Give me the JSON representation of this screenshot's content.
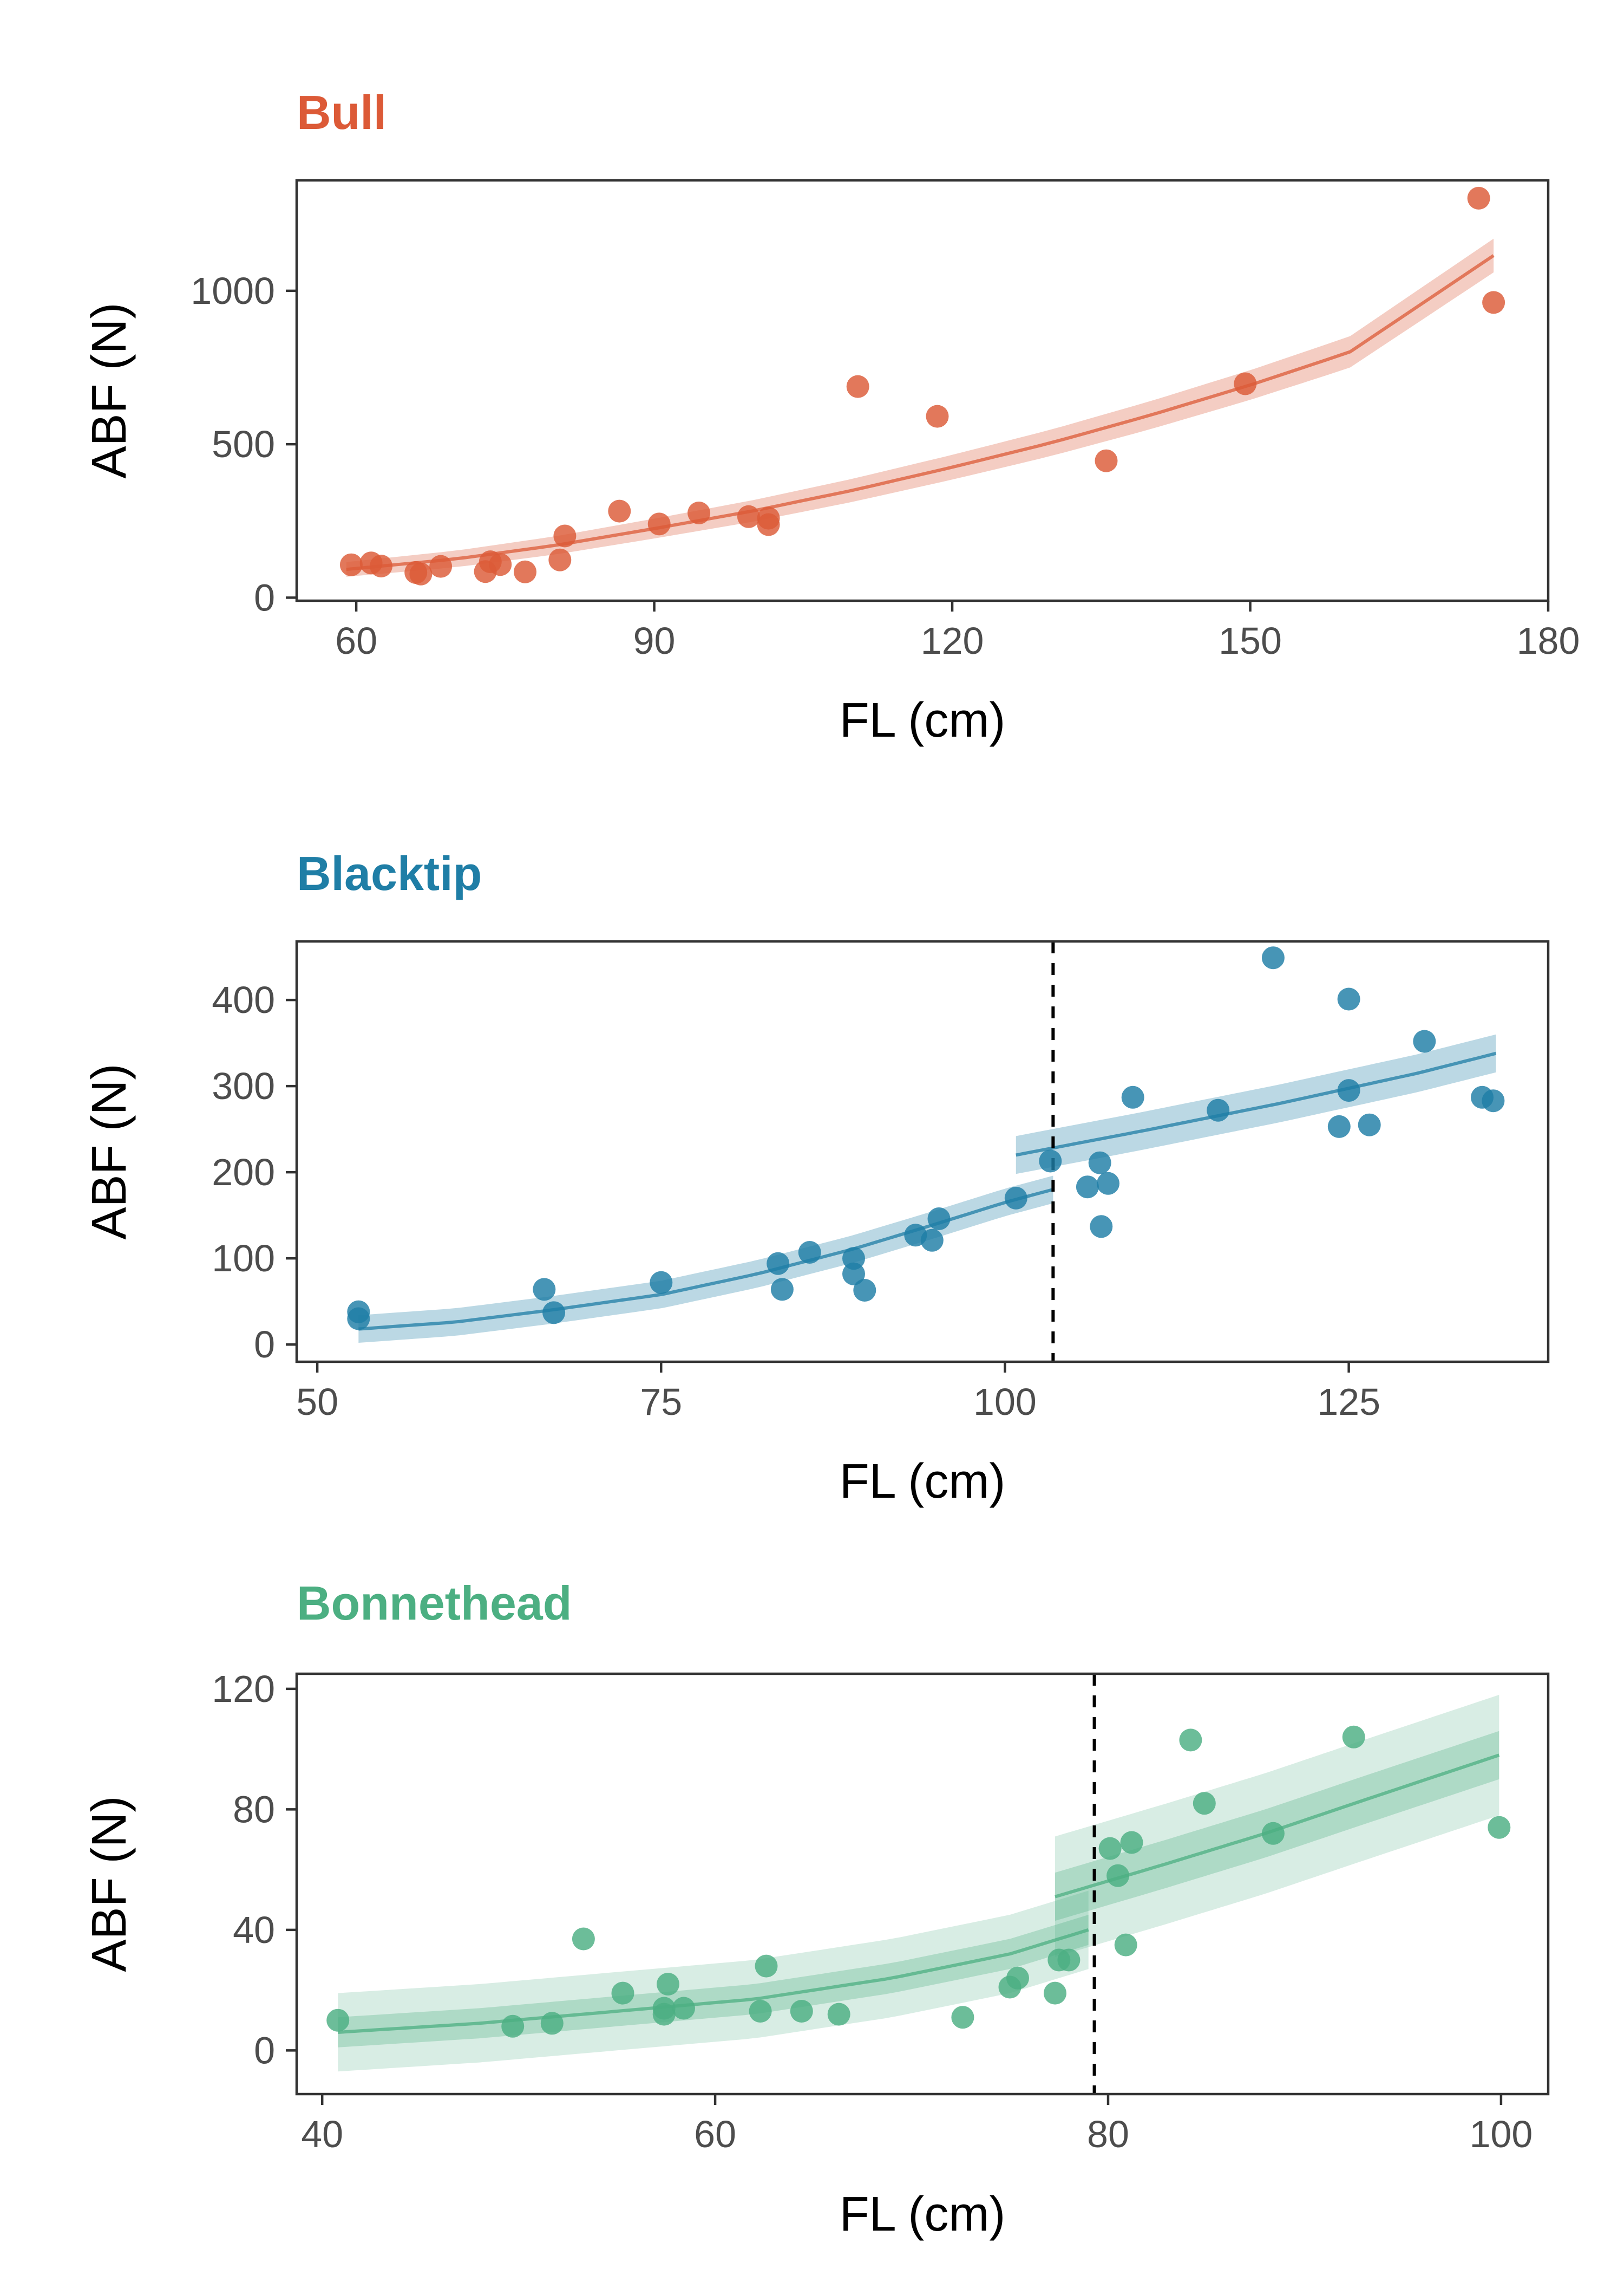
{
  "chart_data": [
    {
      "type": "scatter",
      "title": "Bull",
      "color": "#dc5a37",
      "xlabel": "FL (cm)",
      "ylabel": "ABF (N)",
      "xlim": [
        54,
        180
      ],
      "ylim": [
        -10,
        1360
      ],
      "xticks": [
        60,
        90,
        120,
        150,
        180
      ],
      "yticks": [
        0,
        500,
        1000
      ],
      "points": [
        [
          59.5,
          107
        ],
        [
          61.5,
          113
        ],
        [
          62.5,
          103
        ],
        [
          66.0,
          82
        ],
        [
          66.5,
          77
        ],
        [
          68.5,
          102
        ],
        [
          73.0,
          85
        ],
        [
          73.5,
          117
        ],
        [
          74.5,
          108
        ],
        [
          77.0,
          84
        ],
        [
          80.5,
          123
        ],
        [
          81.0,
          201
        ],
        [
          86.5,
          282
        ],
        [
          90.5,
          240
        ],
        [
          94.5,
          276
        ],
        [
          99.5,
          264
        ],
        [
          101.5,
          238
        ],
        [
          101.5,
          259
        ],
        [
          110.5,
          688
        ],
        [
          118.5,
          591
        ],
        [
          135.5,
          446
        ],
        [
          149.5,
          697
        ],
        [
          173.0,
          1302
        ],
        [
          174.5,
          962
        ]
      ],
      "fit": {
        "x": [
          59,
          70,
          80,
          90,
          100,
          110,
          120,
          130,
          140,
          150,
          160,
          174.5
        ],
        "y": [
          92,
          126,
          170,
          225,
          283,
          350,
          425,
          505,
          595,
          693,
          800,
          1115
        ],
        "ci_half_width_low": 24,
        "ci_half_width_high": 55
      },
      "threshold_x": null
    },
    {
      "type": "scatter",
      "title": "Blacktip",
      "color": "#1f7ea6",
      "xlabel": "FL (cm)",
      "ylabel": "ABF (N)",
      "xlim": [
        48.5,
        139.5
      ],
      "ylim": [
        -20,
        468
      ],
      "xticks": [
        50,
        75,
        100,
        125
      ],
      "yticks": [
        0,
        100,
        200,
        300,
        400
      ],
      "points": [
        [
          53.0,
          38
        ],
        [
          53.0,
          30
        ],
        [
          66.5,
          64
        ],
        [
          67.2,
          37
        ],
        [
          75.0,
          72
        ],
        [
          83.5,
          94
        ],
        [
          83.8,
          64
        ],
        [
          85.8,
          107
        ],
        [
          89.0,
          100
        ],
        [
          89.0,
          82
        ],
        [
          89.8,
          63
        ],
        [
          93.5,
          127
        ],
        [
          94.7,
          121
        ],
        [
          95.2,
          146
        ],
        [
          100.8,
          170
        ],
        [
          103.3,
          213
        ],
        [
          106.0,
          183
        ],
        [
          106.9,
          211
        ],
        [
          107.0,
          137
        ],
        [
          107.5,
          187
        ],
        [
          109.3,
          287
        ],
        [
          115.5,
          272
        ],
        [
          119.5,
          449
        ],
        [
          124.3,
          253
        ],
        [
          125.0,
          401
        ],
        [
          125.0,
          295
        ],
        [
          126.5,
          255
        ],
        [
          130.5,
          352
        ],
        [
          134.7,
          287
        ],
        [
          135.5,
          283
        ]
      ],
      "fit_segments": [
        {
          "x": [
            53,
            60,
            67,
            75,
            82,
            89,
            95,
            100,
            103.5
          ],
          "y": [
            18,
            26,
            40,
            58,
            82,
            111,
            140,
            165,
            180
          ],
          "ci_half_width": 16
        },
        {
          "x": [
            100.8,
            110,
            120,
            130,
            135.7
          ],
          "y": [
            220,
            248,
            280,
            315,
            338
          ],
          "ci_half_width": 22
        }
      ],
      "threshold_x": 103.5
    },
    {
      "type": "scatter",
      "title": "Bonnethead",
      "color": "#4caf82",
      "xlabel": "FL (cm)",
      "ylabel": "ABF (N)",
      "xlim": [
        38.7,
        102.4
      ],
      "ylim": [
        -14.5,
        125
      ],
      "xticks": [
        40,
        60,
        80,
        100
      ],
      "yticks": [
        0,
        40,
        80,
        120
      ],
      "points": [
        [
          40.8,
          10
        ],
        [
          49.7,
          8
        ],
        [
          51.7,
          9
        ],
        [
          53.3,
          37
        ],
        [
          55.3,
          19
        ],
        [
          57.4,
          14
        ],
        [
          57.4,
          12
        ],
        [
          57.6,
          22
        ],
        [
          58.4,
          14
        ],
        [
          62.3,
          13
        ],
        [
          62.6,
          28
        ],
        [
          64.4,
          13
        ],
        [
          66.3,
          12
        ],
        [
          72.6,
          11
        ],
        [
          75.0,
          21
        ],
        [
          75.4,
          24
        ],
        [
          77.3,
          19
        ],
        [
          77.5,
          30
        ],
        [
          78.0,
          30
        ],
        [
          80.1,
          67
        ],
        [
          80.5,
          58
        ],
        [
          80.9,
          35
        ],
        [
          81.2,
          69
        ],
        [
          84.2,
          103
        ],
        [
          84.9,
          82
        ],
        [
          88.4,
          72
        ],
        [
          92.5,
          104
        ],
        [
          99.9,
          74
        ]
      ],
      "fit_segments": [
        {
          "x": [
            40.8,
            48,
            55,
            62,
            69,
            75,
            79
          ],
          "y": [
            6,
            9,
            13,
            17,
            24,
            32,
            40
          ],
          "inner_half_width": 5,
          "outer_half_width": 13
        },
        {
          "x": [
            77.3,
            83,
            88,
            93,
            99.9
          ],
          "y": [
            51,
            62,
            72,
            83,
            98
          ],
          "inner_half_width": 8,
          "outer_half_width": 20
        }
      ],
      "threshold_x": 79.3
    }
  ]
}
